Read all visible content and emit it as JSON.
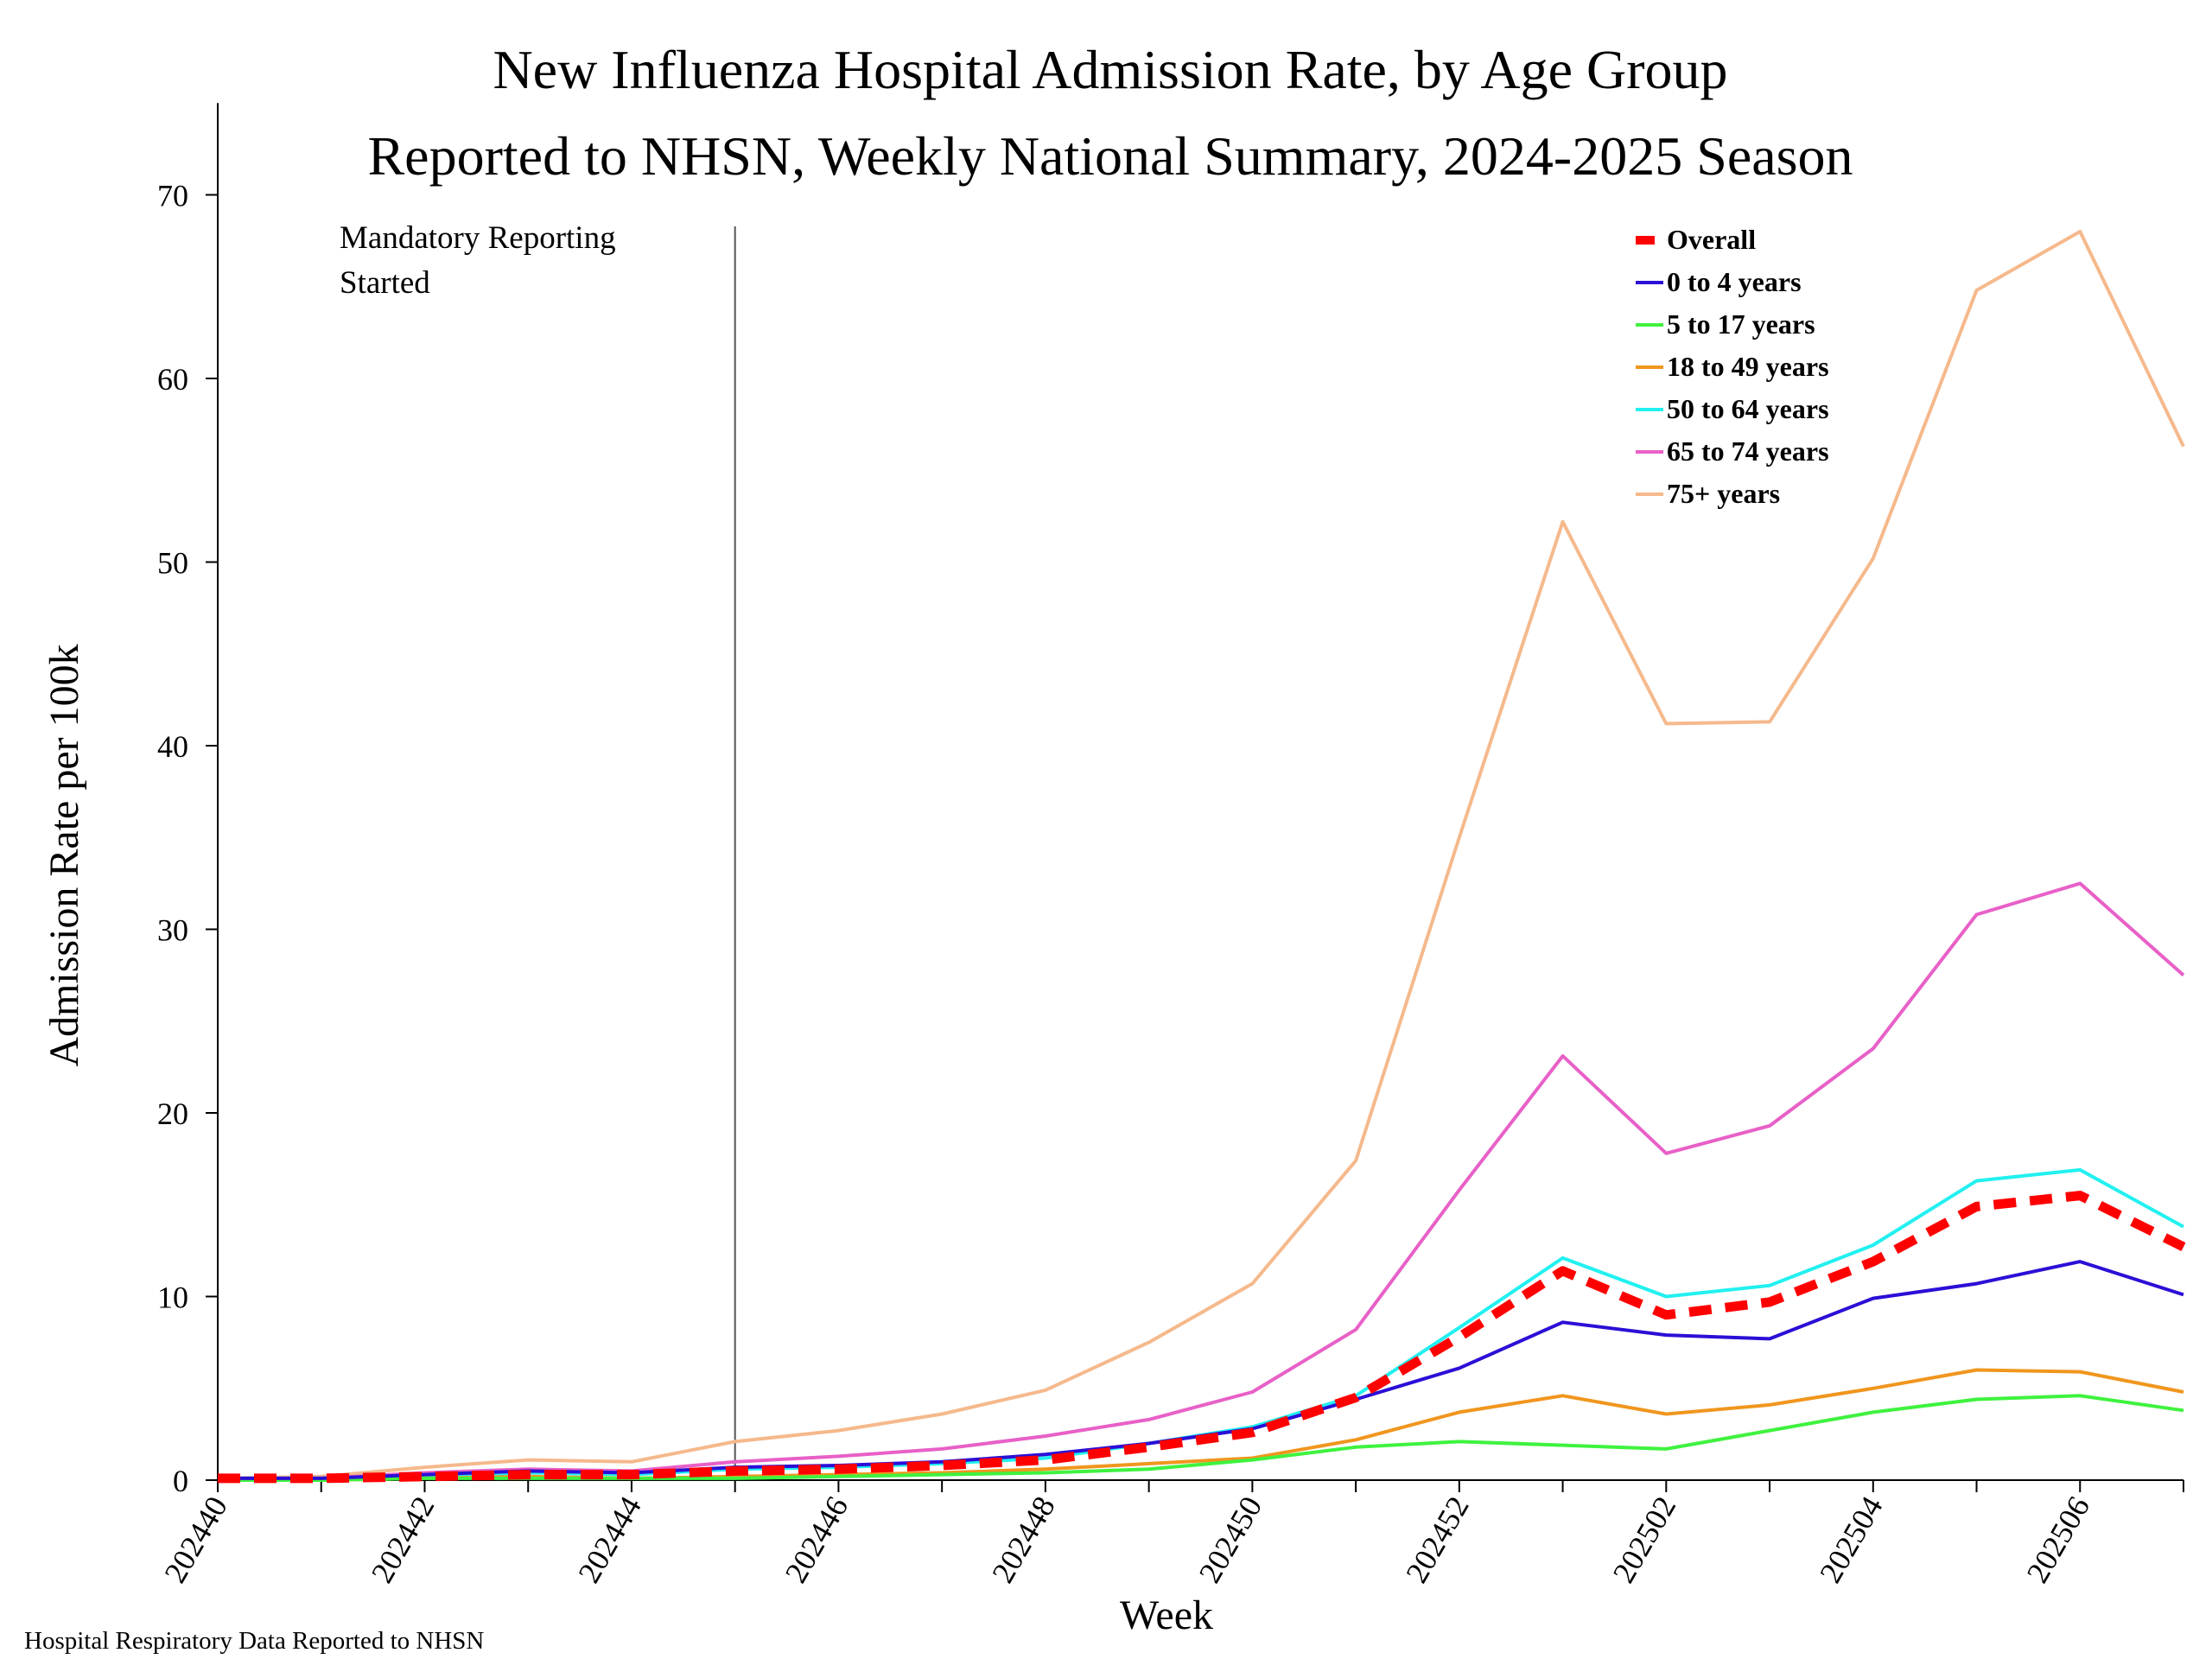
{
  "chart_data": {
    "type": "line",
    "title": "New Influenza Hospital Admission Rate, by Age Group",
    "subtitle": "Reported to NHSN, Weekly National Summary, 2024-2025 Season",
    "xlabel": "Week",
    "ylabel": "Admission Rate per 100k",
    "ylim": [
      0,
      75
    ],
    "yticks": [
      0,
      10,
      20,
      30,
      40,
      50,
      60,
      70
    ],
    "x": [
      "202440",
      "202441",
      "202442",
      "202443",
      "202444",
      "202445",
      "202446",
      "202447",
      "202448",
      "202449",
      "202450",
      "202451",
      "202452",
      "202501",
      "202502",
      "202503",
      "202504",
      "202505",
      "202506",
      "202507"
    ],
    "xtick_labels": [
      "202440",
      "202442",
      "202444",
      "202446",
      "202448",
      "202450",
      "202452",
      "202502",
      "202504",
      "202506"
    ],
    "grid": false,
    "legend_position": "top-right",
    "annotation": {
      "line1": "Mandatory Reporting",
      "line2": "Started",
      "week": "202445"
    },
    "series": [
      {
        "name": "Overall",
        "color": "#ff0000",
        "style": "dashed",
        "values": [
          0.1,
          0.1,
          0.2,
          0.3,
          0.3,
          0.5,
          0.6,
          0.8,
          1.1,
          1.8,
          2.6,
          4.5,
          7.8,
          11.4,
          9.0,
          9.7,
          11.9,
          14.9,
          15.5,
          12.7
        ]
      },
      {
        "name": "0 to 4 years",
        "color": "#2b0fd6",
        "style": "solid",
        "values": [
          0.1,
          0.1,
          0.3,
          0.5,
          0.4,
          0.7,
          0.8,
          1.0,
          1.4,
          2.0,
          2.8,
          4.4,
          6.1,
          8.6,
          7.9,
          7.7,
          9.9,
          10.7,
          11.9,
          10.1
        ]
      },
      {
        "name": "5 to 17 years",
        "color": "#3ff23f",
        "style": "solid",
        "values": [
          0.0,
          0.0,
          0.1,
          0.1,
          0.1,
          0.1,
          0.2,
          0.3,
          0.4,
          0.6,
          1.1,
          1.8,
          2.1,
          1.9,
          1.7,
          2.7,
          3.7,
          4.4,
          4.6,
          3.8
        ]
      },
      {
        "name": "18 to 49 years",
        "color": "#f0961e",
        "style": "solid",
        "values": [
          0.0,
          0.0,
          0.1,
          0.2,
          0.1,
          0.2,
          0.3,
          0.4,
          0.6,
          0.9,
          1.2,
          2.2,
          3.7,
          4.6,
          3.6,
          4.1,
          5.0,
          6.0,
          5.9,
          4.8
        ]
      },
      {
        "name": "50 to 64 years",
        "color": "#22f0f0",
        "style": "solid",
        "values": [
          0.1,
          0.1,
          0.2,
          0.4,
          0.3,
          0.6,
          0.7,
          0.9,
          1.2,
          2.0,
          2.9,
          4.6,
          8.3,
          12.1,
          10.0,
          10.6,
          12.8,
          16.3,
          16.9,
          13.8
        ]
      },
      {
        "name": "65 to 74 years",
        "color": "#e860c7",
        "style": "solid",
        "values": [
          0.1,
          0.1,
          0.4,
          0.6,
          0.5,
          1.0,
          1.3,
          1.7,
          2.4,
          3.3,
          4.8,
          8.2,
          15.8,
          23.1,
          17.8,
          19.3,
          23.5,
          30.8,
          32.5,
          27.5
        ]
      },
      {
        "name": "75+ years",
        "color": "#f5b98c",
        "style": "solid",
        "values": [
          0.1,
          0.2,
          0.7,
          1.1,
          1.0,
          2.1,
          2.7,
          3.6,
          4.9,
          7.5,
          10.7,
          17.4,
          35.0,
          52.2,
          41.2,
          41.3,
          50.2,
          64.8,
          68.0,
          56.3
        ]
      }
    ]
  },
  "footer": "Hospital Respiratory Data Reported to NHSN"
}
